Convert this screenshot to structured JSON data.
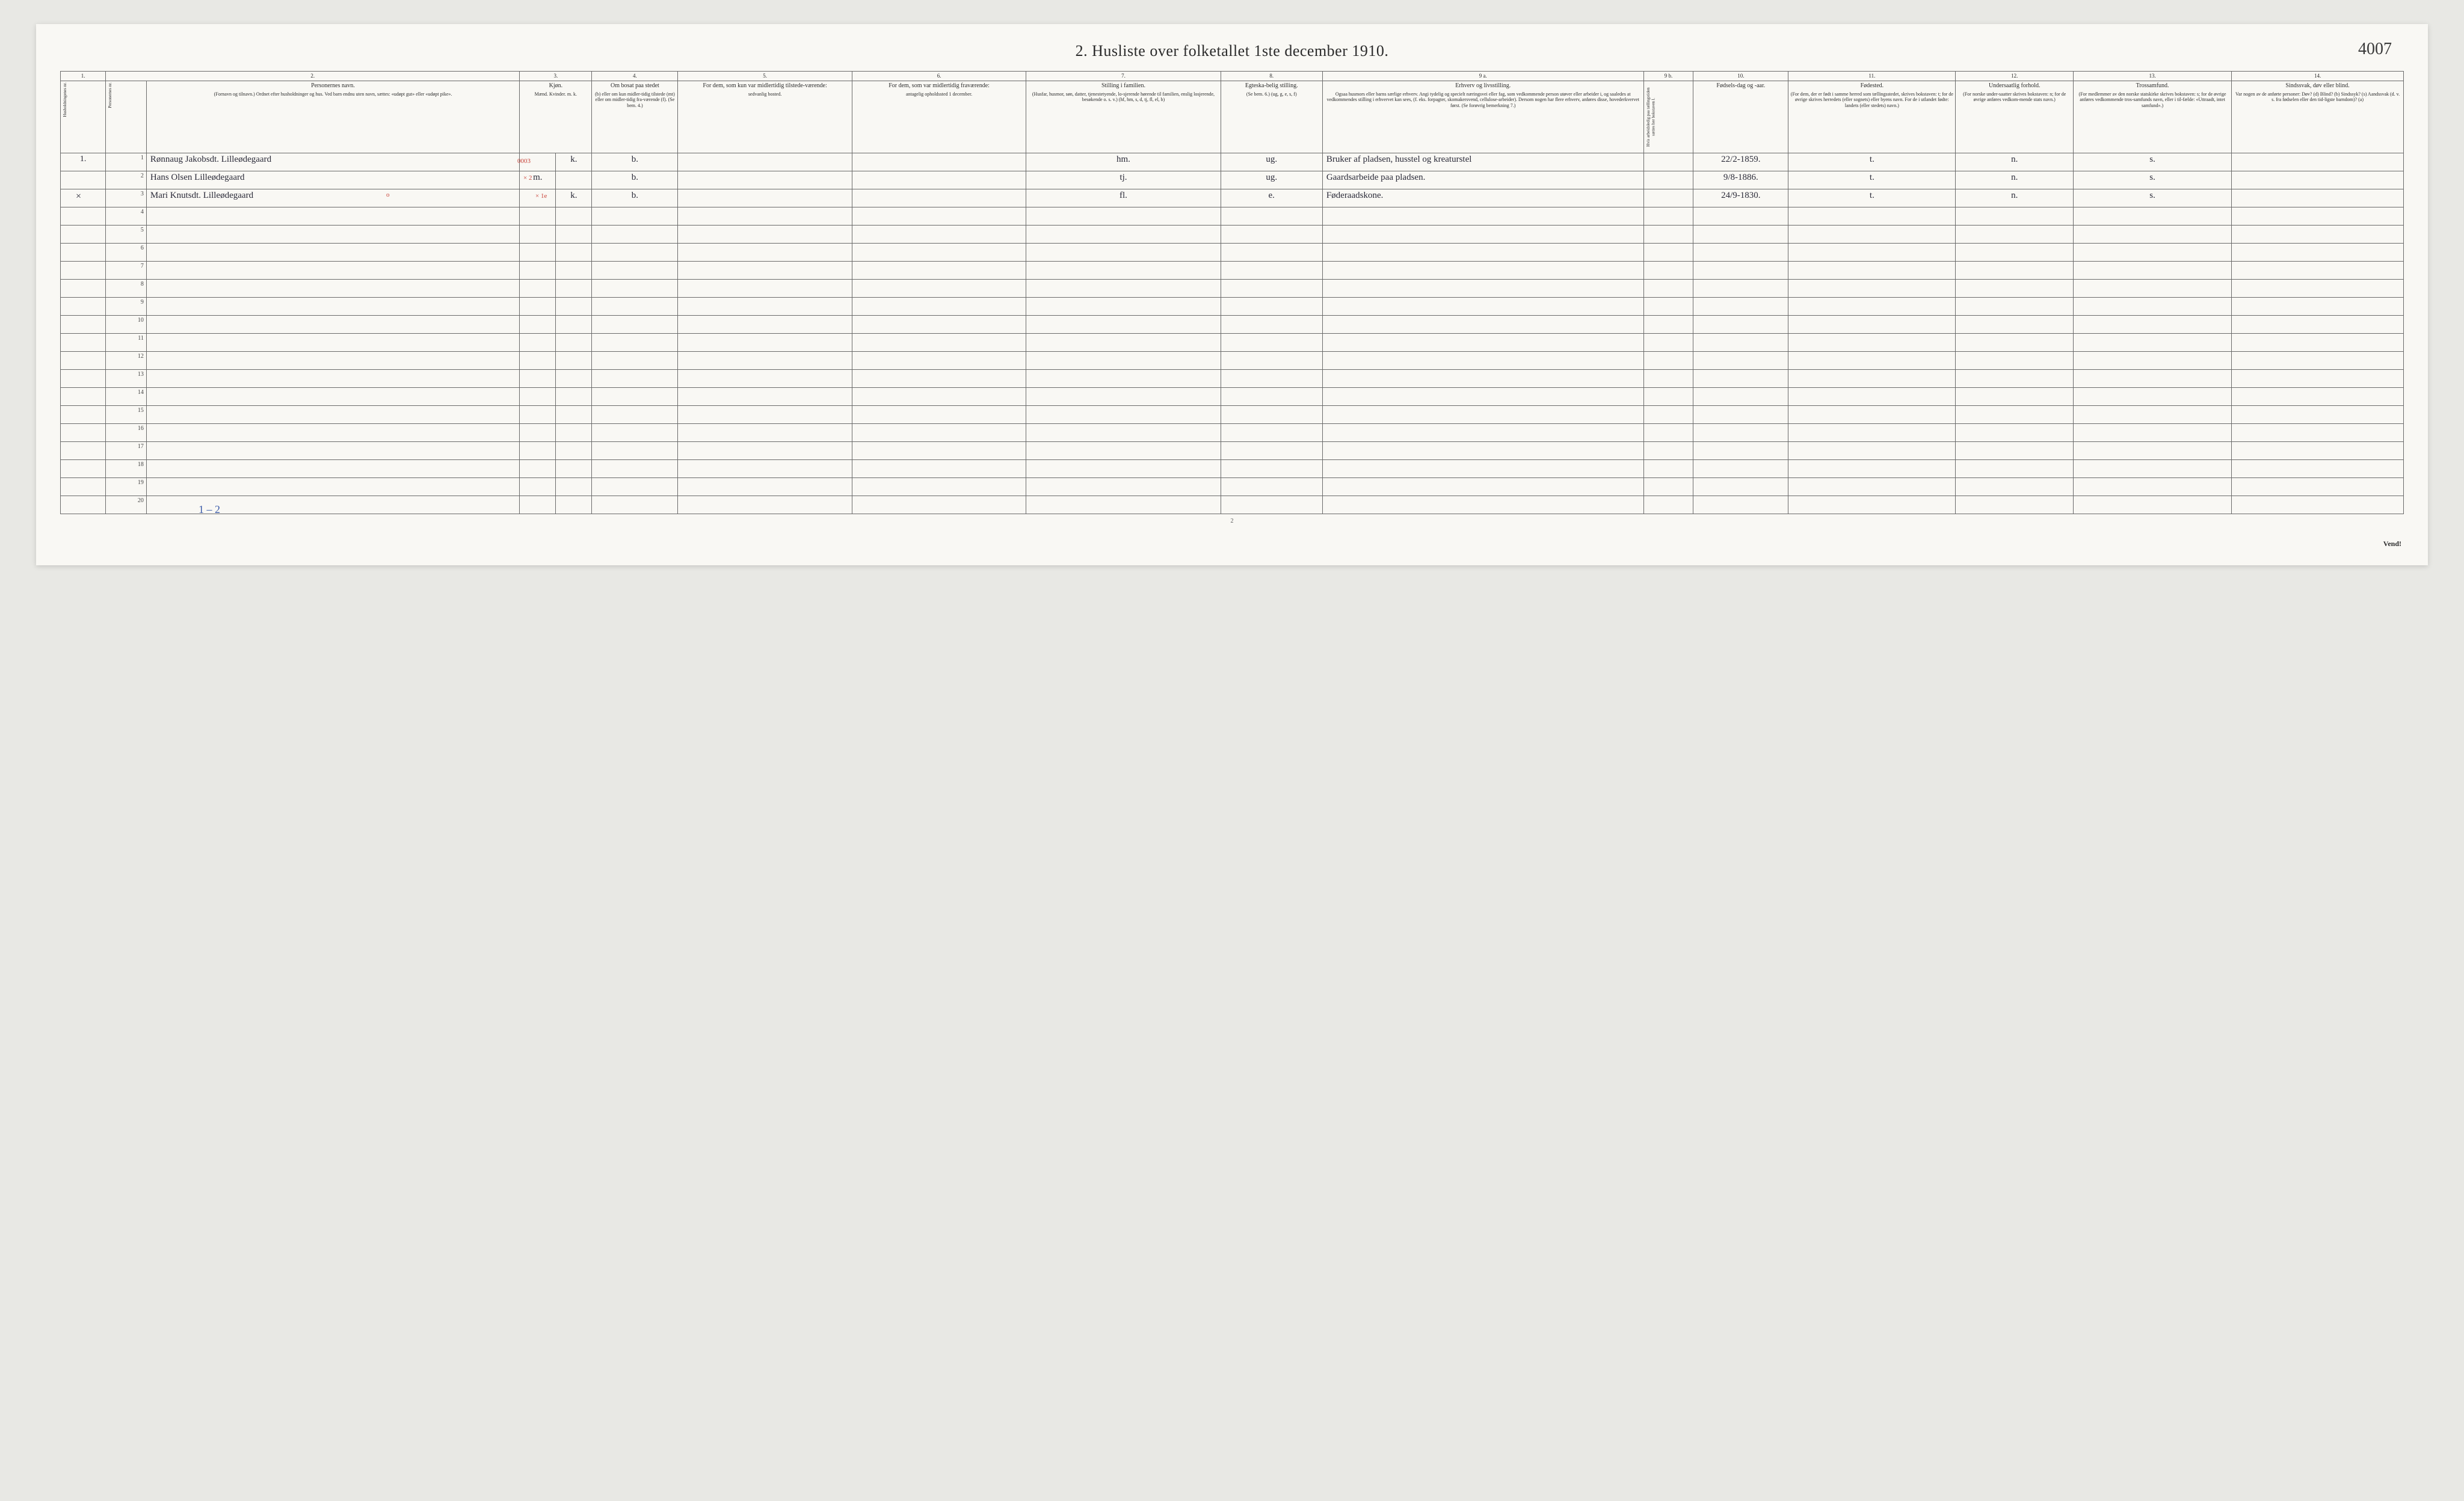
{
  "title": "2.  Husliste over folketallet 1ste december 1910.",
  "page_ref": "4007",
  "footer_page_num": "2",
  "vend_text": "Vend!",
  "bottom_annotation": "1 – 2",
  "red_code": "0003",
  "red_x2": "× 2",
  "red_x1e": "× 1e",
  "red_o": "o",
  "margin_x": "×",
  "columns": {
    "numbers": [
      "1.",
      "2.",
      "3.",
      "4.",
      "5.",
      "6.",
      "7.",
      "8.",
      "9 a.",
      "9 b.",
      "10.",
      "11.",
      "12.",
      "13.",
      "14."
    ],
    "widths_pct": [
      2.0,
      1.8,
      16.5,
      1.6,
      1.6,
      3.8,
      7.7,
      7.7,
      8.6,
      4.5,
      14.2,
      2.2,
      4.2,
      7.4,
      5.2,
      7.0,
      7.6
    ],
    "headers": [
      {
        "main": "Husholdningenes nr.",
        "sub": ""
      },
      {
        "main": "Personernes nr.",
        "sub": ""
      },
      {
        "main": "Personernes navn.",
        "sub": "(Fornavn og tilnavn.)\nOrdnet efter husholdninger og hus.\nVed barn endnu uten navn, sættes: «udøpt gut»\neller «udøpt pike»."
      },
      {
        "main": "Kjøn.",
        "sub": "Mænd.  Kvinder.\nm.   k."
      },
      {
        "main": "Om bosat paa stedet",
        "sub": "(b) eller om kun midler-tidig tilstede (mt) eller om midler-tidig fra-værende (f).\n(Se bem. 4.)"
      },
      {
        "main": "For dem, som kun var midlertidig tilstede-værende:",
        "sub": "sedvanlig bosted."
      },
      {
        "main": "For dem, som var midlertidig fraværende:",
        "sub": "antagelig opholdssted 1 december."
      },
      {
        "main": "Stilling i familien.",
        "sub": "(Husfar, husmor, søn, datter, tjenestetyende, lo-sjerende hørende til familien, enslig losjerende, besøkende o. s. v.)\n(hf, hm, s, d, tj, fl, el, b)"
      },
      {
        "main": "Egteska-belig stilling.",
        "sub": "(Se bem. 6.)\n(ug, g, e, s, f)"
      },
      {
        "main": "Erhverv og livsstilling.",
        "sub": "Ogsaa husmors eller barns særlige erhverv.\nAngi tydelig og specielt næringsvei eller fag, som vedkommende person utøver eller arbeider i, og saaledes at vedkommendes stilling i erhvervet kan sees, (f. eks. forpagter, skomakersvend, cellulose-arbeider). Dersom nogen har flere erhverv, anføres disse, hovederkvervet først.\n(Se forøvrig bemerkning 7.)"
      },
      {
        "main": "",
        "sub": "Hvis arbeidsledig paa tællingstiden sættes her bokstaven l."
      },
      {
        "main": "Fødsels-dag og -aar.",
        "sub": ""
      },
      {
        "main": "Fødested.",
        "sub": "(For dem, der er født i samme herred som tællingsstedet, skrives bokstaven: t; for de øvrige skrives herredets (eller sognets) eller byens navn. For de i utlandet fødte: landets (eller stedets) navn.)"
      },
      {
        "main": "Undersaatlig forhold.",
        "sub": "(For norske under-saatter skrives bokstaven: n; for de øvrige anføres vedkom-mende stats navn.)"
      },
      {
        "main": "Trossamfund.",
        "sub": "(For medlemmer av den norske statskirke skrives bokstaven: s; for de øvrige anføres vedkommende tros-samfunds navn, eller i til-fælde: «Uttraadt, intet samfund».)"
      },
      {
        "main": "Sindssvak, døv eller blind.",
        "sub": "Var nogen av de anførte personer:\nDøv?      (d)\nBlind?     (b)\nSindssyk?  (s)\nAandssvak (d. v. s. fra fødselen eller den tid-ligste barndom)?  (a)"
      }
    ]
  },
  "rows": [
    {
      "hh": "1.",
      "pn": "1",
      "name": "Rønnaug Jakobsdt. Lilleødegaard",
      "sex_m": "",
      "sex_k": "k.",
      "resid": "b.",
      "c5": "",
      "c6": "",
      "family": "hm.",
      "marital": "ug.",
      "occupation": "Bruker af pladsen, husstel og kreaturstel",
      "c9b": "",
      "birth": "22/2-1859.",
      "birthplace": "t.",
      "nation": "n.",
      "faith": "s.",
      "c14": ""
    },
    {
      "hh": "",
      "pn": "2",
      "name": "Hans Olsen Lilleødegaard",
      "sex_m": "m.",
      "sex_k": "",
      "resid": "b.",
      "c5": "",
      "c6": "",
      "family": "tj.",
      "marital": "ug.",
      "occupation": "Gaardsarbeide paa pladsen.",
      "c9b": "",
      "birth": "9/8-1886.",
      "birthplace": "t.",
      "nation": "n.",
      "faith": "s.",
      "c14": ""
    },
    {
      "hh": "",
      "pn": "3",
      "name": "Mari Knutsdt. Lilleødegaard",
      "sex_m": "",
      "sex_k": "k.",
      "resid": "b.",
      "c5": "",
      "c6": "",
      "family": "fl.",
      "marital": "e.",
      "occupation": "Føderaadskone.",
      "c9b": "",
      "birth": "24/9-1830.",
      "birthplace": "t.",
      "nation": "n.",
      "faith": "s.",
      "c14": ""
    }
  ],
  "empty_rows": [
    4,
    5,
    6,
    7,
    8,
    9,
    10,
    11,
    12,
    13,
    14,
    15,
    16,
    17,
    18,
    19,
    20
  ]
}
